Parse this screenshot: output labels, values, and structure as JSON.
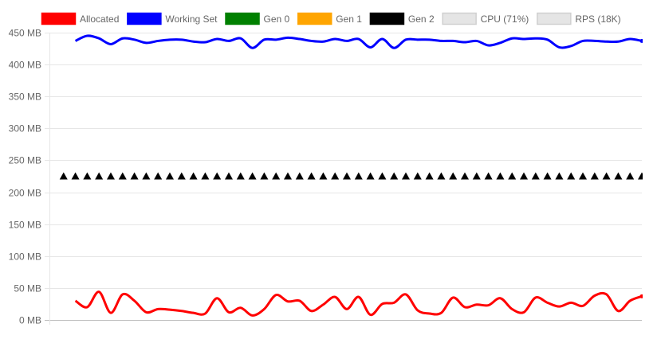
{
  "chart_data": {
    "type": "line",
    "title": "",
    "xlabel": "",
    "ylabel": "",
    "ylim": [
      0,
      450
    ],
    "xlim": [
      -1.2,
      49
    ],
    "grid": true,
    "legend_placement": "top",
    "y_ticks": [
      "0 MB",
      "50 MB",
      "100 MB",
      "150 MB",
      "200 MB",
      "250 MB",
      "300 MB",
      "350 MB",
      "400 MB",
      "450 MB"
    ],
    "y_tick_values": [
      0,
      50,
      100,
      150,
      200,
      250,
      300,
      350,
      400,
      450
    ],
    "legend": [
      {
        "name": "Allocated",
        "color": "#ff0000",
        "hidden": false
      },
      {
        "name": "Working Set",
        "color": "#0000ff",
        "hidden": false
      },
      {
        "name": "Gen 0",
        "color": "#008000",
        "hidden": false
      },
      {
        "name": "Gen 1",
        "color": "#ffa500",
        "hidden": false
      },
      {
        "name": "Gen 2",
        "color": "#000000",
        "hidden": false
      },
      {
        "name": "CPU (71%)",
        "color": "#e5e5e5",
        "hidden": true
      },
      {
        "name": "RPS (18K)",
        "color": "#e5e5e5",
        "hidden": true
      }
    ],
    "series": [
      {
        "name": "Allocated",
        "color": "#ff0000",
        "style": "line",
        "x_start": 1,
        "values": [
          30,
          20,
          44,
          11,
          40,
          30,
          12,
          17,
          16,
          14,
          11,
          10,
          34,
          12,
          19,
          7,
          17,
          39,
          29,
          30,
          14,
          24,
          36,
          17,
          36,
          8,
          25,
          27,
          40,
          15,
          10,
          11,
          35,
          20,
          24,
          23,
          34,
          17,
          12,
          35,
          27,
          21,
          27,
          22,
          38,
          40,
          14,
          30,
          37
        ]
      },
      {
        "name": "Working Set",
        "color": "#0000ff",
        "style": "line",
        "x_start": 1,
        "values": [
          437,
          445,
          441,
          432,
          441,
          439,
          434,
          437,
          439,
          439,
          436,
          435,
          440,
          437,
          441,
          426,
          439,
          439,
          442,
          440,
          437,
          436,
          440,
          437,
          440,
          427,
          440,
          426,
          439,
          439,
          439,
          437,
          437,
          435,
          437,
          430,
          434,
          441,
          440,
          441,
          439,
          427,
          429,
          437,
          437,
          436,
          436,
          440,
          437
        ]
      },
      {
        "name": "Gen 2",
        "color": "#000000",
        "style": "triangle-markers",
        "x_start": 0,
        "values": [
          225,
          225,
          225,
          225,
          225,
          225,
          225,
          225,
          225,
          225,
          225,
          225,
          225,
          225,
          225,
          225,
          225,
          225,
          225,
          225,
          225,
          225,
          225,
          225,
          225,
          225,
          225,
          225,
          225,
          225,
          225,
          225,
          225,
          225,
          225,
          225,
          225,
          225,
          225,
          225,
          225,
          225,
          225,
          225,
          225,
          225,
          225,
          225,
          225,
          225
        ]
      }
    ]
  }
}
